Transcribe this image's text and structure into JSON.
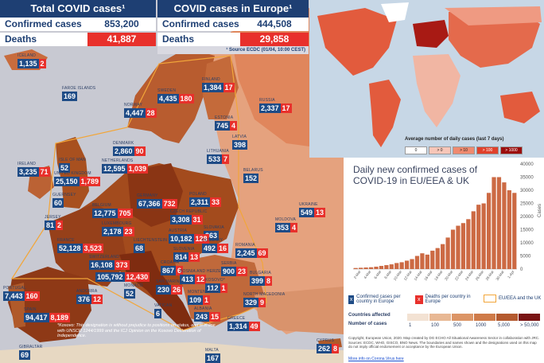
{
  "header": {
    "total_title": "Total COVID cases¹",
    "europe_title": "COVID cases in Europe¹",
    "confirmed_label": "Confirmed cases",
    "deaths_label": "Deaths",
    "total_confirmed": "853,200",
    "total_deaths": "41,887",
    "europe_confirmed": "444,508",
    "europe_deaths": "29,858",
    "source": "¹ Source ECDC (01/04, 10:00 CEST)"
  },
  "countries": [
    {
      "id": "iceland",
      "name": "ICELAND",
      "cases": "1,135",
      "deaths": "2"
    },
    {
      "id": "faroe",
      "name": "FAROE ISLANDS",
      "cases": "169",
      "deaths": ""
    },
    {
      "id": "sweden",
      "name": "SWEDEN",
      "cases": "4,435",
      "deaths": "180"
    },
    {
      "id": "finland",
      "name": "FINLAND",
      "cases": "1,384",
      "deaths": "17"
    },
    {
      "id": "norway",
      "name": "NORWAY",
      "cases": "4,447",
      "deaths": "28"
    },
    {
      "id": "russia",
      "name": "RUSSIA",
      "cases": "2,337",
      "deaths": "17"
    },
    {
      "id": "estonia",
      "name": "ESTONIA",
      "cases": "745",
      "deaths": "4"
    },
    {
      "id": "latvia",
      "name": "LATVIA",
      "cases": "398",
      "deaths": ""
    },
    {
      "id": "denmark",
      "name": "DENMARK",
      "cases": "2,860",
      "deaths": "90"
    },
    {
      "id": "lithuania",
      "name": "LITHUANIA",
      "cases": "533",
      "deaths": "7"
    },
    {
      "id": "isleofman",
      "name": "ISLE OF MAN",
      "cases": "52",
      "deaths": ""
    },
    {
      "id": "belarus",
      "name": "BELARUS",
      "cases": "152",
      "deaths": ""
    },
    {
      "id": "ireland",
      "name": "IRELAND",
      "cases": "3,235",
      "deaths": "71"
    },
    {
      "id": "uk",
      "name": "UNITED KINGDOM",
      "cases": "25,150",
      "deaths": "1,789"
    },
    {
      "id": "netherlands",
      "name": "NETHERLANDS",
      "cases": "12,595",
      "deaths": "1,039"
    },
    {
      "id": "poland",
      "name": "POLAND",
      "cases": "2,311",
      "deaths": "33"
    },
    {
      "id": "guernsey",
      "name": "GUERNSEY",
      "cases": "60",
      "deaths": ""
    },
    {
      "id": "belgium",
      "name": "BELGIUM",
      "cases": "12,775",
      "deaths": "705"
    },
    {
      "id": "germany",
      "name": "GERMANY",
      "cases": "67,366",
      "deaths": "732"
    },
    {
      "id": "jersey",
      "name": "JERSEY",
      "cases": "81",
      "deaths": "2"
    },
    {
      "id": "luxembourg",
      "name": "LUXEMBOURG",
      "cases": "2,178",
      "deaths": "23"
    },
    {
      "id": "czechia",
      "name": "CZECH REPUBLIC",
      "cases": "3,308",
      "deaths": "31"
    },
    {
      "id": "ukraine",
      "name": "UKRAINE",
      "cases": "549",
      "deaths": "13"
    },
    {
      "id": "slovakia",
      "name": "SLOVAKIA",
      "cases": "363",
      "deaths": ""
    },
    {
      "id": "moldova",
      "name": "MOLDOVA",
      "cases": "353",
      "deaths": "4"
    },
    {
      "id": "france",
      "name": "FRANCE",
      "cases": "52,128",
      "deaths": "3,523"
    },
    {
      "id": "liechtenstein",
      "name": "LIECHTENSTEIN",
      "cases": "68",
      "deaths": ""
    },
    {
      "id": "austria",
      "name": "AUSTRIA",
      "cases": "10,182",
      "deaths": "128"
    },
    {
      "id": "hungary",
      "name": "HUNGARY",
      "cases": "492",
      "deaths": "16"
    },
    {
      "id": "switzerland",
      "name": "SWITZERLAND",
      "cases": "16,108",
      "deaths": "373"
    },
    {
      "id": "slovenia",
      "name": "SLOVENIA",
      "cases": "814",
      "deaths": "13"
    },
    {
      "id": "romania",
      "name": "ROMANIA",
      "cases": "2,245",
      "deaths": "69"
    },
    {
      "id": "italy",
      "name": "ITALY",
      "cases": "105,792",
      "deaths": "12,430"
    },
    {
      "id": "croatia",
      "name": "CROATIA",
      "cases": "867",
      "deaths": "6"
    },
    {
      "id": "bosnia",
      "name": "BOSNIA AND HERZEGOVINA",
      "cases": "413",
      "deaths": "12"
    },
    {
      "id": "serbia",
      "name": "SERBIA",
      "cases": "900",
      "deaths": "23"
    },
    {
      "id": "sanmarino",
      "name": "SAN MARINO",
      "cases": "230",
      "deaths": "26"
    },
    {
      "id": "kosovo",
      "name": "KOSOVO*",
      "cases": "112",
      "deaths": "1"
    },
    {
      "id": "bulgaria",
      "name": "BULGARIA",
      "cases": "399",
      "deaths": "8"
    },
    {
      "id": "portugal",
      "name": "PORTUGAL",
      "cases": "7,443",
      "deaths": "160"
    },
    {
      "id": "andorra",
      "name": "ANDORRA",
      "cases": "376",
      "deaths": "12"
    },
    {
      "id": "monaco",
      "name": "MONACO",
      "cases": "52",
      "deaths": ""
    },
    {
      "id": "vatican",
      "name": "VATICAN",
      "cases": "6",
      "deaths": ""
    },
    {
      "id": "montenegro",
      "name": "MONTENEGRO",
      "cases": "109",
      "deaths": "1"
    },
    {
      "id": "northmacedonia",
      "name": "NORTH MACEDONIA",
      "cases": "329",
      "deaths": "9"
    },
    {
      "id": "albania",
      "name": "ALBANIA",
      "cases": "243",
      "deaths": "15"
    },
    {
      "id": "spain",
      "name": "SPAIN",
      "cases": "94,417",
      "deaths": "8,189"
    },
    {
      "id": "greece",
      "name": "GREECE",
      "cases": "1,314",
      "deaths": "49"
    },
    {
      "id": "gibraltar",
      "name": "GIBRALTAR",
      "cases": "69",
      "deaths": ""
    },
    {
      "id": "malta",
      "name": "MALTA",
      "cases": "167",
      "deaths": ""
    },
    {
      "id": "cyprus",
      "name": "CYPRUS",
      "cases": "262",
      "deaths": "8"
    }
  ],
  "kosovo_note": "*Kosovo: This designation is without prejudice to positions on status, and is in line with UNSCR 1244/1999 and the ICJ Opinion on the Kosovo Declaration of Independence.",
  "world_map": {
    "legend_title": "Average number of daily cases (last 7 days)",
    "legend_bins": [
      "0",
      "> 0",
      "> 10",
      "> 100",
      "> 1000"
    ],
    "legend_colors": [
      "#ffffff",
      "#f7c6b8",
      "#ef8a6f",
      "#e0402b",
      "#9b0d0d"
    ]
  },
  "chart_data": {
    "type": "bar",
    "title": "Daily new confirmed cases of COVID-19 in EU/EEA & UK",
    "ylabel": "Cases",
    "ylim": [
      0,
      40000
    ],
    "yticks": [
      "40000",
      "35000",
      "30000",
      "25000",
      "20000",
      "15000",
      "10000",
      "5000",
      "0"
    ],
    "x_tick_labels": [
      "2-Mar",
      "4-Mar",
      "6-Mar",
      "8-Mar",
      "10-Mar",
      "12-Mar",
      "14-Mar",
      "16-Mar",
      "18-Mar",
      "20-Mar",
      "22-Mar",
      "24-Mar",
      "26-Mar",
      "28-Mar",
      "30-Mar",
      "1-Apr"
    ],
    "categories": [
      "1-Mar",
      "2-Mar",
      "3-Mar",
      "4-Mar",
      "5-Mar",
      "6-Mar",
      "7-Mar",
      "8-Mar",
      "9-Mar",
      "10-Mar",
      "11-Mar",
      "12-Mar",
      "13-Mar",
      "14-Mar",
      "15-Mar",
      "16-Mar",
      "17-Mar",
      "18-Mar",
      "19-Mar",
      "20-Mar",
      "21-Mar",
      "22-Mar",
      "23-Mar",
      "24-Mar",
      "25-Mar",
      "26-Mar",
      "27-Mar",
      "28-Mar",
      "29-Mar",
      "30-Mar",
      "31-Mar",
      "1-Apr"
    ],
    "values": [
      400,
      500,
      600,
      700,
      900,
      1200,
      1500,
      1800,
      2300,
      2600,
      3200,
      3800,
      5000,
      6000,
      5500,
      7000,
      8000,
      9500,
      12000,
      15000,
      16500,
      17500,
      19000,
      22000,
      24500,
      25000,
      29000,
      35000,
      35000,
      33000,
      30000,
      29000
    ],
    "bar_color": "#cc6a44"
  },
  "legend": {
    "confirmed_desc": "Confirmed cases per country in Europe",
    "deaths_desc": "Deaths per country in Europe",
    "eu_desc": "EU/EEA and the UK",
    "x_glyph": "x",
    "countries_affected": "Countries affected",
    "number_of_cases": "Number of cases",
    "scale_labels": [
      "1",
      "100",
      "500",
      "1000",
      "5,000",
      "> 50,000"
    ],
    "scale_colors": [
      "#f3e2d3",
      "#e8b894",
      "#dc9566",
      "#cf7b49",
      "#b45a2f",
      "#7a1414"
    ],
    "copyright": "Copyright, European Union, 2020. Map created by DG ECHO All Situational Awareness Sector in collaboration with JRC. Sources: ECDC, WHO, GISCO, BNO News. The boundaries and names shown and the designations used on this map do not imply official endorsement or acceptance by the European Union.",
    "more_info": "More info on Corona Virus here"
  }
}
